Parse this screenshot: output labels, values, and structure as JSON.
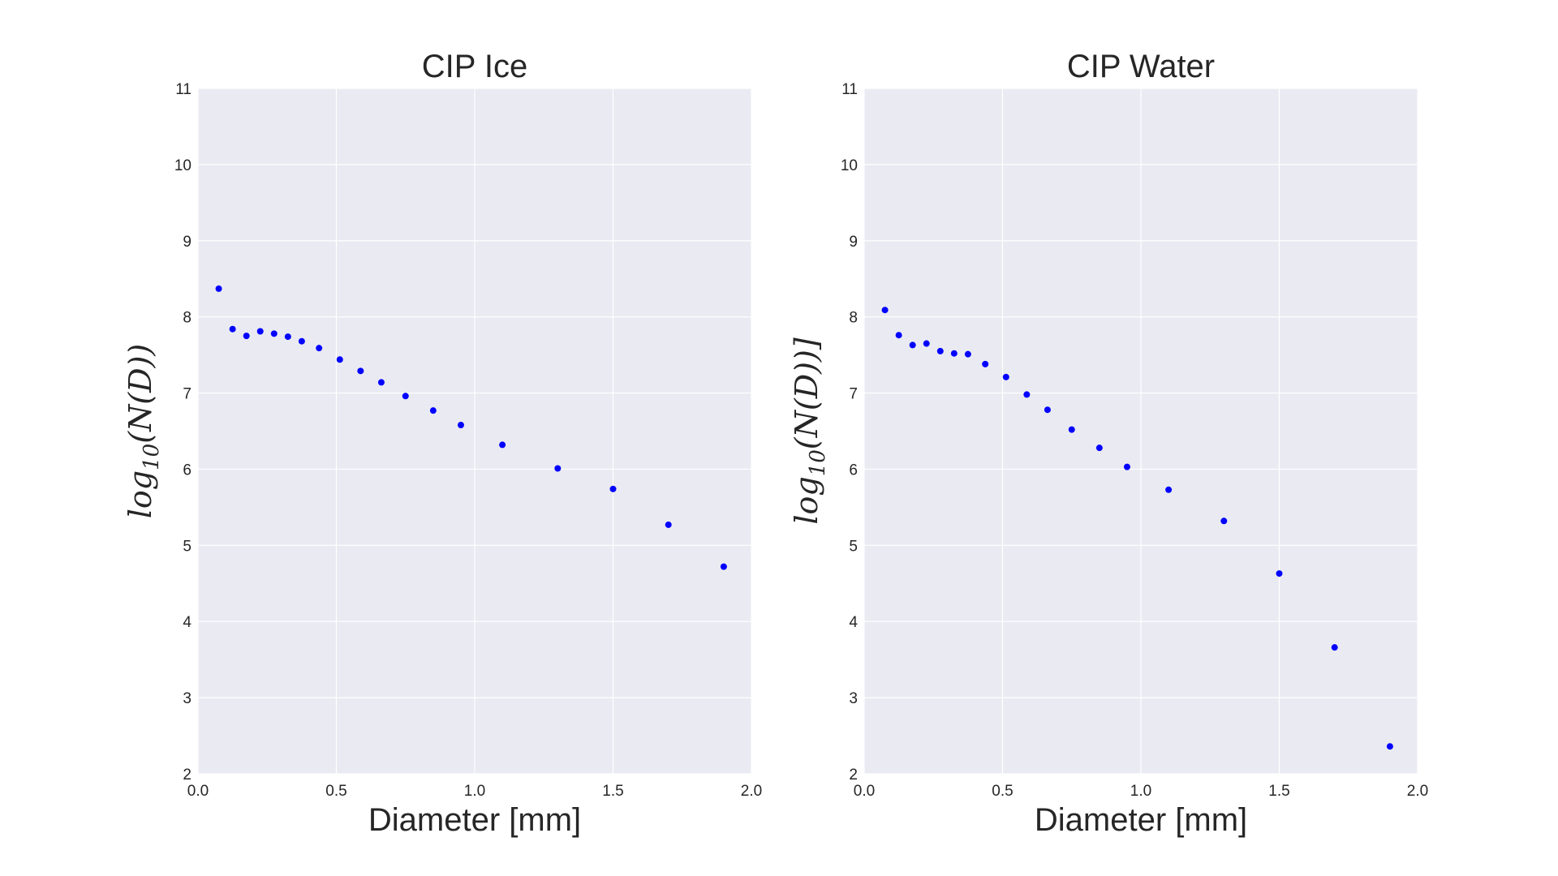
{
  "chart_data": [
    {
      "type": "scatter",
      "title": "CIP Ice",
      "xlabel": "Diameter [mm]",
      "ylabel_base": "log",
      "ylabel_sub": "10",
      "ylabel_rest": "(N(D))",
      "xlim": [
        0.0,
        2.0
      ],
      "ylim": [
        2,
        11
      ],
      "xticks": [
        "0.0",
        "0.5",
        "1.0",
        "1.5",
        "2.0"
      ],
      "yticks": [
        "2",
        "3",
        "4",
        "5",
        "6",
        "7",
        "8",
        "9",
        "10",
        "11"
      ],
      "grid": true,
      "marker_color": "#0000ff",
      "x": [
        0.075,
        0.125,
        0.175,
        0.225,
        0.275,
        0.325,
        0.375,
        0.4375,
        0.5125,
        0.5875,
        0.6625,
        0.75,
        0.85,
        0.95,
        1.1,
        1.3,
        1.5,
        1.7,
        1.9
      ],
      "y": [
        8.37,
        7.84,
        7.75,
        7.81,
        7.78,
        7.74,
        7.68,
        7.59,
        7.44,
        7.29,
        7.14,
        6.96,
        6.77,
        6.58,
        6.32,
        6.01,
        5.74,
        5.27,
        4.72
      ]
    },
    {
      "type": "scatter",
      "title": "CIP Water",
      "xlabel": "Diameter [mm]",
      "ylabel_base": "log",
      "ylabel_sub": "10",
      "ylabel_rest": "(N(D))]",
      "xlim": [
        0.0,
        2.0
      ],
      "ylim": [
        2,
        11
      ],
      "xticks": [
        "0.0",
        "0.5",
        "1.0",
        "1.5",
        "2.0"
      ],
      "yticks": [
        "2",
        "3",
        "4",
        "5",
        "6",
        "7",
        "8",
        "9",
        "10",
        "11"
      ],
      "grid": true,
      "marker_color": "#0000ff",
      "x": [
        0.075,
        0.125,
        0.175,
        0.225,
        0.275,
        0.325,
        0.375,
        0.4375,
        0.5125,
        0.5875,
        0.6625,
        0.75,
        0.85,
        0.95,
        1.1,
        1.3,
        1.5,
        1.7,
        1.9
      ],
      "y": [
        8.09,
        7.76,
        7.63,
        7.65,
        7.55,
        7.52,
        7.51,
        7.38,
        7.21,
        6.98,
        6.78,
        6.52,
        6.28,
        6.03,
        5.73,
        5.32,
        4.63,
        3.66,
        2.36
      ]
    }
  ]
}
